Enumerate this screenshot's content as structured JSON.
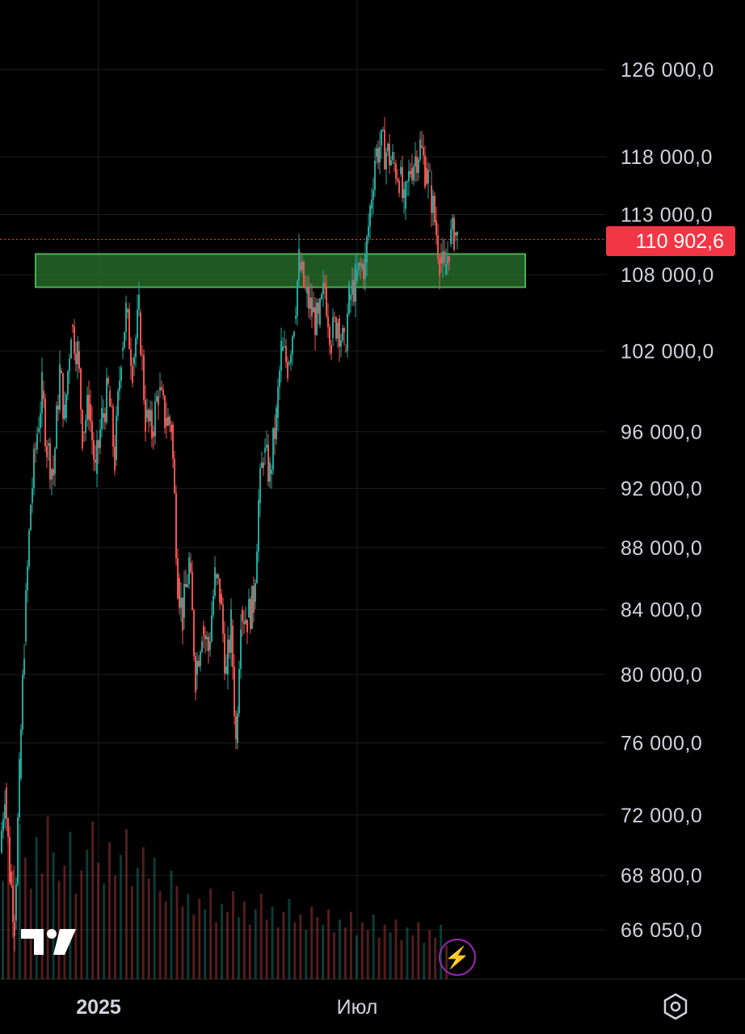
{
  "chart_data": {
    "type": "candlestick",
    "y_axis": {
      "scale": "log",
      "ticks": [
        126000,
        118000,
        113000,
        108000,
        102000,
        96000,
        92000,
        88000,
        84000,
        80000,
        76000,
        72000,
        68800,
        66050
      ],
      "tick_labels": [
        "126 000,0",
        "118 000,0",
        "113 000,0",
        "108 000,0",
        "102 000,0",
        "96 000,0",
        "92 000,0",
        "88 000,0",
        "84 000,0",
        "80 000,0",
        "76 000,0",
        "72 000,0",
        "68 800,0",
        "66 050,0"
      ]
    },
    "x_axis": {
      "tick_labels": [
        "2025",
        "Июл"
      ]
    },
    "current_price": 110902.6,
    "current_price_label": "110 902,6",
    "support_zone": {
      "low": 107000,
      "high": 109700
    },
    "path": [
      [
        0,
        70000
      ],
      [
        6,
        73500
      ],
      [
        12,
        69000
      ],
      [
        18,
        66500
      ],
      [
        24,
        74000
      ],
      [
        30,
        82000
      ],
      [
        38,
        91000
      ],
      [
        46,
        96000
      ],
      [
        52,
        99000
      ],
      [
        58,
        95000
      ],
      [
        66,
        93000
      ],
      [
        74,
        100500
      ],
      [
        80,
        97000
      ],
      [
        88,
        104000
      ],
      [
        96,
        102000
      ],
      [
        102,
        96000
      ],
      [
        110,
        98000
      ],
      [
        118,
        93000
      ],
      [
        126,
        97000
      ],
      [
        134,
        99000
      ],
      [
        142,
        94000
      ],
      [
        150,
        102000
      ],
      [
        156,
        105000
      ],
      [
        164,
        101000
      ],
      [
        172,
        105000
      ],
      [
        180,
        97000
      ],
      [
        188,
        96000
      ],
      [
        196,
        99000
      ],
      [
        204,
        97000
      ],
      [
        212,
        96500
      ],
      [
        220,
        86000
      ],
      [
        226,
        83500
      ],
      [
        234,
        87000
      ],
      [
        242,
        80000
      ],
      [
        250,
        83000
      ],
      [
        258,
        81500
      ],
      [
        266,
        86000
      ],
      [
        272,
        85000
      ],
      [
        280,
        80000
      ],
      [
        286,
        83000
      ],
      [
        292,
        76000
      ],
      [
        298,
        84000
      ],
      [
        306,
        83500
      ],
      [
        314,
        84500
      ],
      [
        320,
        91000
      ],
      [
        326,
        94500
      ],
      [
        334,
        93000
      ],
      [
        342,
        97000
      ],
      [
        348,
        102000
      ],
      [
        356,
        101000
      ],
      [
        364,
        104500
      ],
      [
        370,
        109000
      ],
      [
        378,
        106500
      ],
      [
        386,
        105000
      ],
      [
        394,
        104000
      ],
      [
        402,
        107000
      ],
      [
        410,
        103000
      ],
      [
        418,
        104500
      ],
      [
        426,
        102000
      ],
      [
        432,
        106000
      ],
      [
        440,
        107500
      ],
      [
        446,
        108500
      ],
      [
        452,
        109000
      ],
      [
        458,
        113500
      ],
      [
        464,
        118000
      ],
      [
        470,
        119000
      ],
      [
        478,
        118500
      ],
      [
        486,
        117500
      ],
      [
        494,
        116500
      ],
      [
        500,
        113500
      ],
      [
        508,
        117000
      ],
      [
        514,
        118000
      ],
      [
        520,
        119000
      ],
      [
        526,
        117000
      ],
      [
        532,
        115500
      ],
      [
        538,
        112500
      ],
      [
        544,
        109500
      ],
      [
        550,
        108000
      ],
      [
        556,
        110500
      ],
      [
        562,
        111500
      ],
      [
        566,
        110900
      ]
    ],
    "volume": [
      38,
      52,
      44,
      60,
      47,
      35,
      55,
      41,
      63,
      49,
      38,
      44,
      57,
      33,
      42,
      50,
      61,
      45,
      37,
      53,
      40,
      48,
      58,
      36,
      43,
      51,
      39,
      47,
      34,
      30,
      42,
      36,
      28,
      33,
      25,
      31,
      27,
      35,
      22,
      29,
      26,
      34,
      24,
      30,
      21,
      27,
      33,
      23,
      28,
      20,
      26,
      31,
      22,
      25,
      19,
      28,
      24,
      21,
      27,
      18,
      23,
      20,
      26,
      17,
      22,
      19,
      25,
      16,
      21,
      18,
      23,
      15,
      20,
      17,
      22,
      14,
      19,
      16,
      21,
      13
    ],
    "colors": {
      "up": "#26a69a",
      "down": "#ef5350",
      "zone_fill": "#2e7d32",
      "zone_border": "#4caf50",
      "price_tag": "#f23645",
      "grid": "#1e1e1e"
    }
  },
  "branding": {
    "logo_text": "TV"
  },
  "icons": {
    "bolt": "lightning-icon",
    "settings": "hexagon-settings-icon"
  }
}
